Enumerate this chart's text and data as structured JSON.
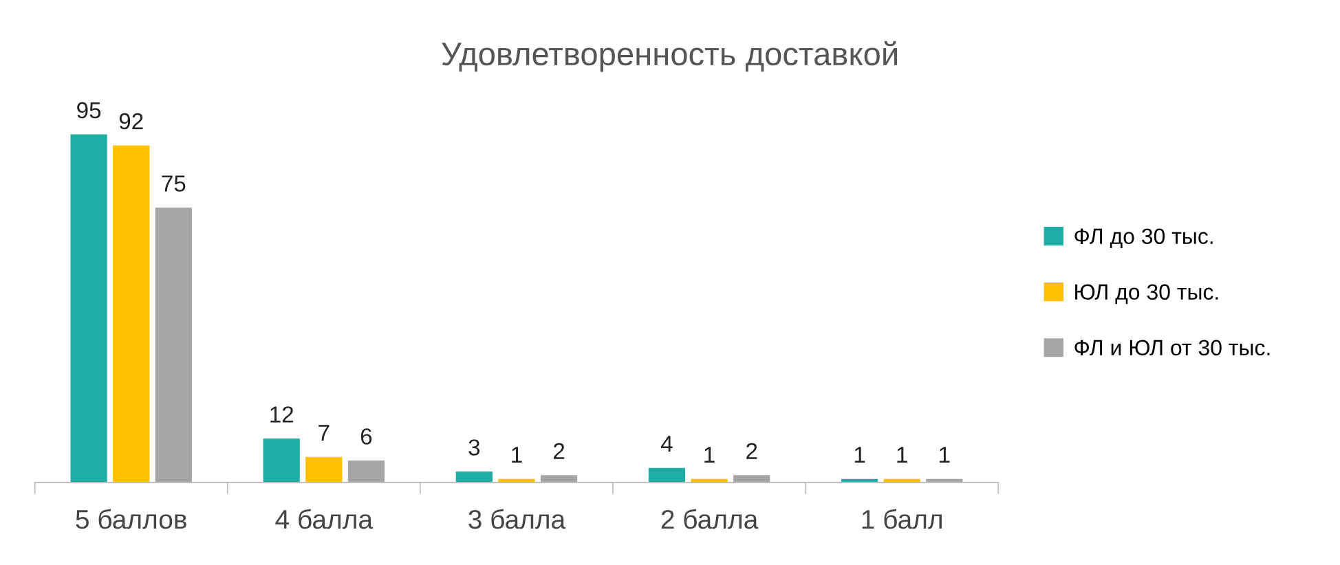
{
  "chart_data": {
    "type": "bar",
    "title": "Удовлетворенность доставкой",
    "categories": [
      "5 баллов",
      "4 балла",
      "3 балла",
      "2 балла",
      "1 балл"
    ],
    "series": [
      {
        "name": "ФЛ до 30 тыс.",
        "color": "#20ada5",
        "values": [
          95,
          12,
          3,
          4,
          1
        ]
      },
      {
        "name": "ЮЛ до 30 тыс.",
        "color": "#ffc000",
        "values": [
          92,
          7,
          1,
          1,
          1
        ]
      },
      {
        "name": "ФЛ и ЮЛ от 30 тыс.",
        "color": "#a5a5a5",
        "values": [
          75,
          6,
          2,
          2,
          1
        ]
      }
    ],
    "data_labels": true,
    "grid": false,
    "legend": "right"
  }
}
